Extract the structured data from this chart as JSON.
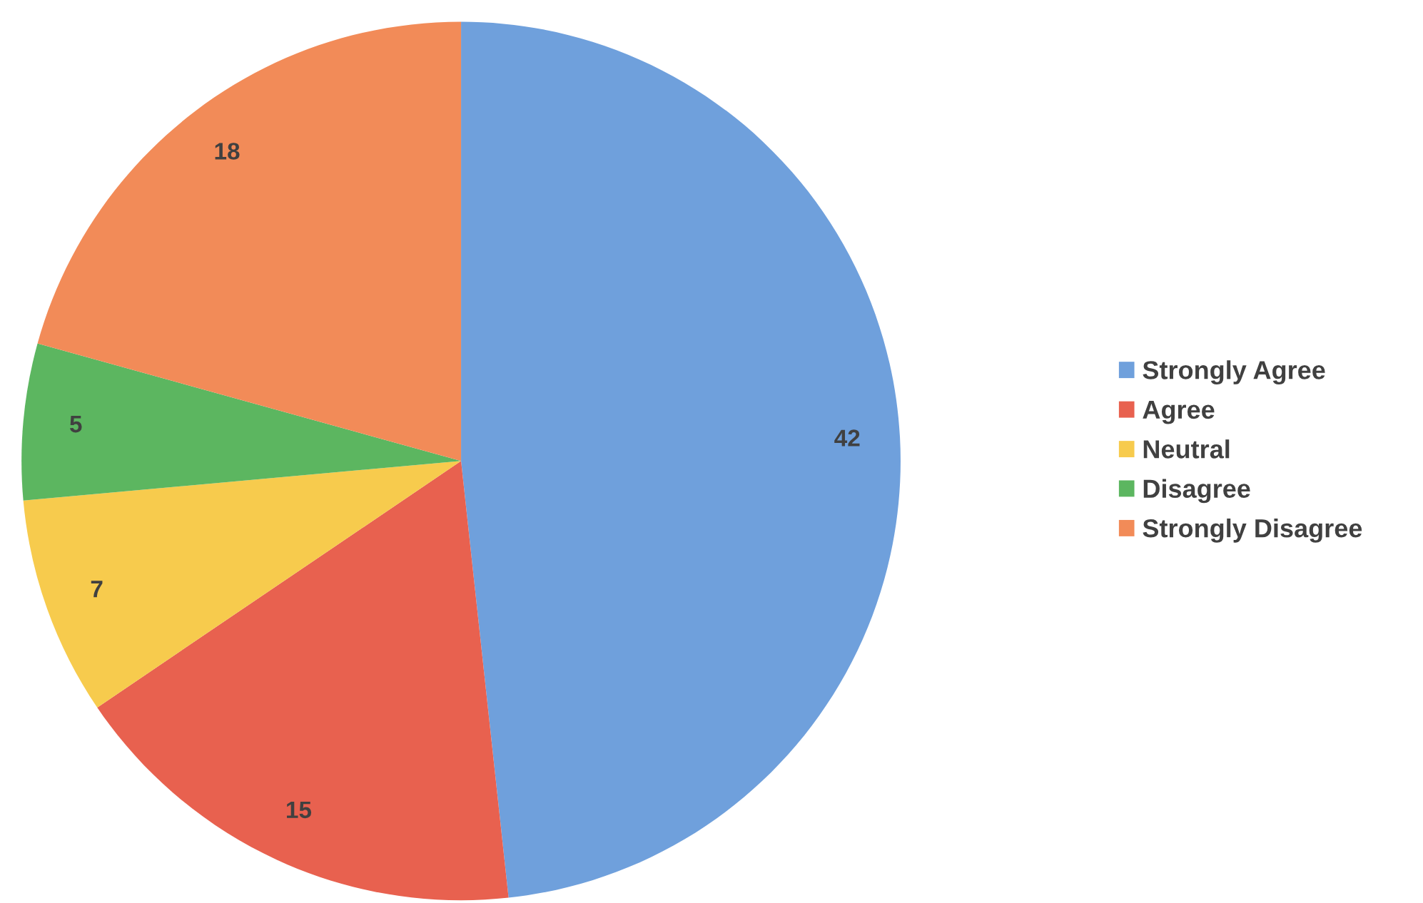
{
  "chart_data": {
    "type": "pie",
    "categories": [
      "Strongly Agree",
      "Agree",
      "Neutral",
      "Disagree",
      "Strongly Disagree"
    ],
    "values": [
      42,
      15,
      7,
      5,
      18
    ],
    "colors": [
      "#6fa0dc",
      "#e8614f",
      "#f7cb4d",
      "#5cb660",
      "#f28b58"
    ],
    "data_labels": true,
    "legend": "right"
  }
}
